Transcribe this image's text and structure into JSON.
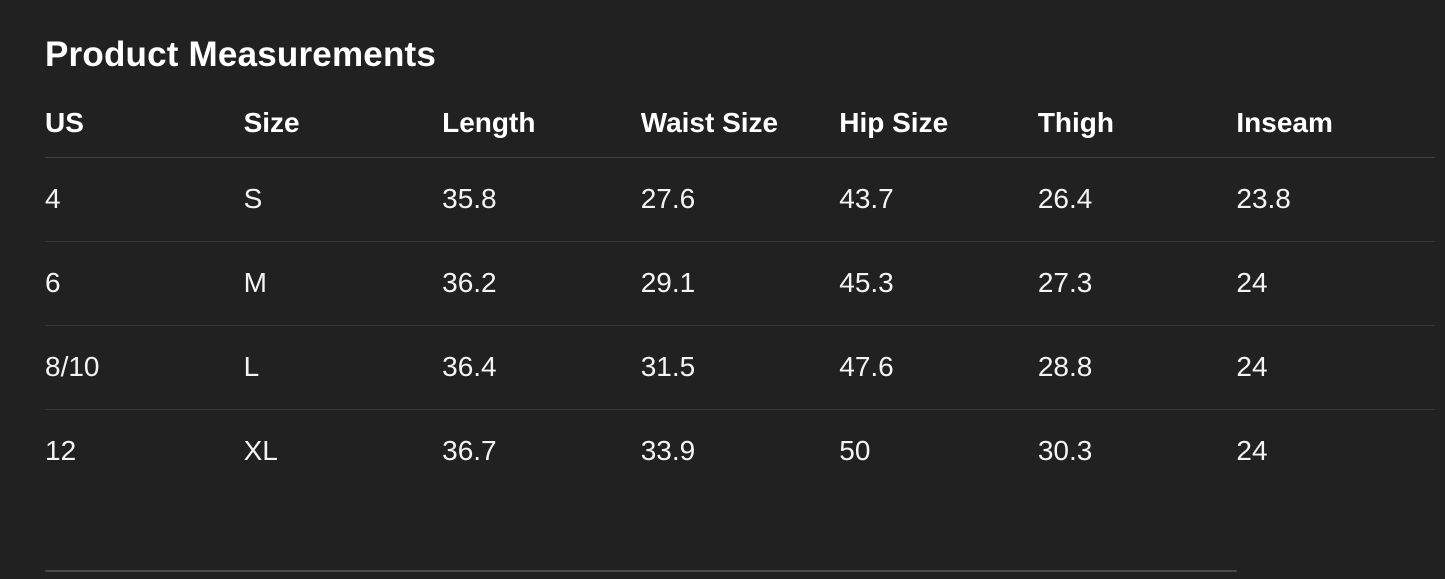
{
  "page": {
    "background": "#212121",
    "text_color": "#ffffff",
    "header_divider_color": "#414141",
    "row_divider_color": "#383838",
    "bottom_divider_color": "#4a4a4a"
  },
  "section": {
    "title": "Product Measurements"
  },
  "table": {
    "columns": [
      "US",
      "Size",
      "Length",
      "Waist Size",
      "Hip Size",
      "Thigh",
      "Inseam"
    ],
    "rows": [
      [
        "4",
        "S",
        "35.8",
        "27.6",
        "43.7",
        "26.4",
        "23.8"
      ],
      [
        "6",
        "M",
        "36.2",
        "29.1",
        "45.3",
        "27.3",
        "24"
      ],
      [
        "8/10",
        "L",
        "36.4",
        "31.5",
        "47.6",
        "28.8",
        "24"
      ],
      [
        "12",
        "XL",
        "36.7",
        "33.9",
        "50",
        "30.3",
        "24"
      ]
    ]
  }
}
